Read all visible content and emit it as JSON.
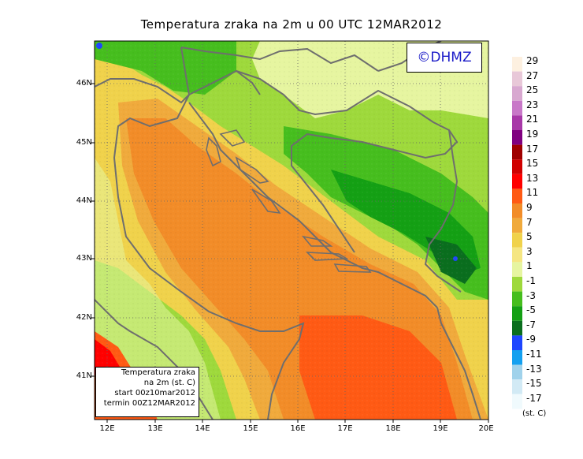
{
  "title": "Temperatura zraka na 2m u 00 UTC 12MAR2012",
  "logo": "©DHMZ",
  "info": {
    "line1": "Temperatura zraka",
    "line2": "na 2m (st. C)",
    "line3": "start 00z10mar2012",
    "line4": "termin 00Z12MAR2012"
  },
  "lat_labels": [
    "46N",
    "45N",
    "44N",
    "43N",
    "42N",
    "41N"
  ],
  "lon_labels": [
    "12E",
    "13E",
    "14E",
    "15E",
    "16E",
    "17E",
    "18E",
    "19E",
    "20E"
  ],
  "legend": {
    "unit": "(st. C)",
    "labels": [
      "29",
      "27",
      "25",
      "23",
      "21",
      "19",
      "17",
      "15",
      "13",
      "11",
      "9",
      "7",
      "5",
      "3",
      "1",
      "-1",
      "-3",
      "-5",
      "-7",
      "-9",
      "-11",
      "-13",
      "-15",
      "-17"
    ],
    "colors": [
      "#fdf0e0",
      "#e8c8d8",
      "#d8a8d0",
      "#c878c8",
      "#a838a8",
      "#800080",
      "#a00000",
      "#d00000",
      "#ff0000",
      "#ff5a14",
      "#f28c28",
      "#f0aa3c",
      "#f0d24b",
      "#f5e682",
      "#e6f5a0",
      "#9ed93c",
      "#46be1e",
      "#14a014",
      "#0a6e1e",
      "#1e46ff",
      "#14a0f0",
      "#a0d2eb",
      "#d2eaf5",
      "#f0fafd"
    ]
  }
}
